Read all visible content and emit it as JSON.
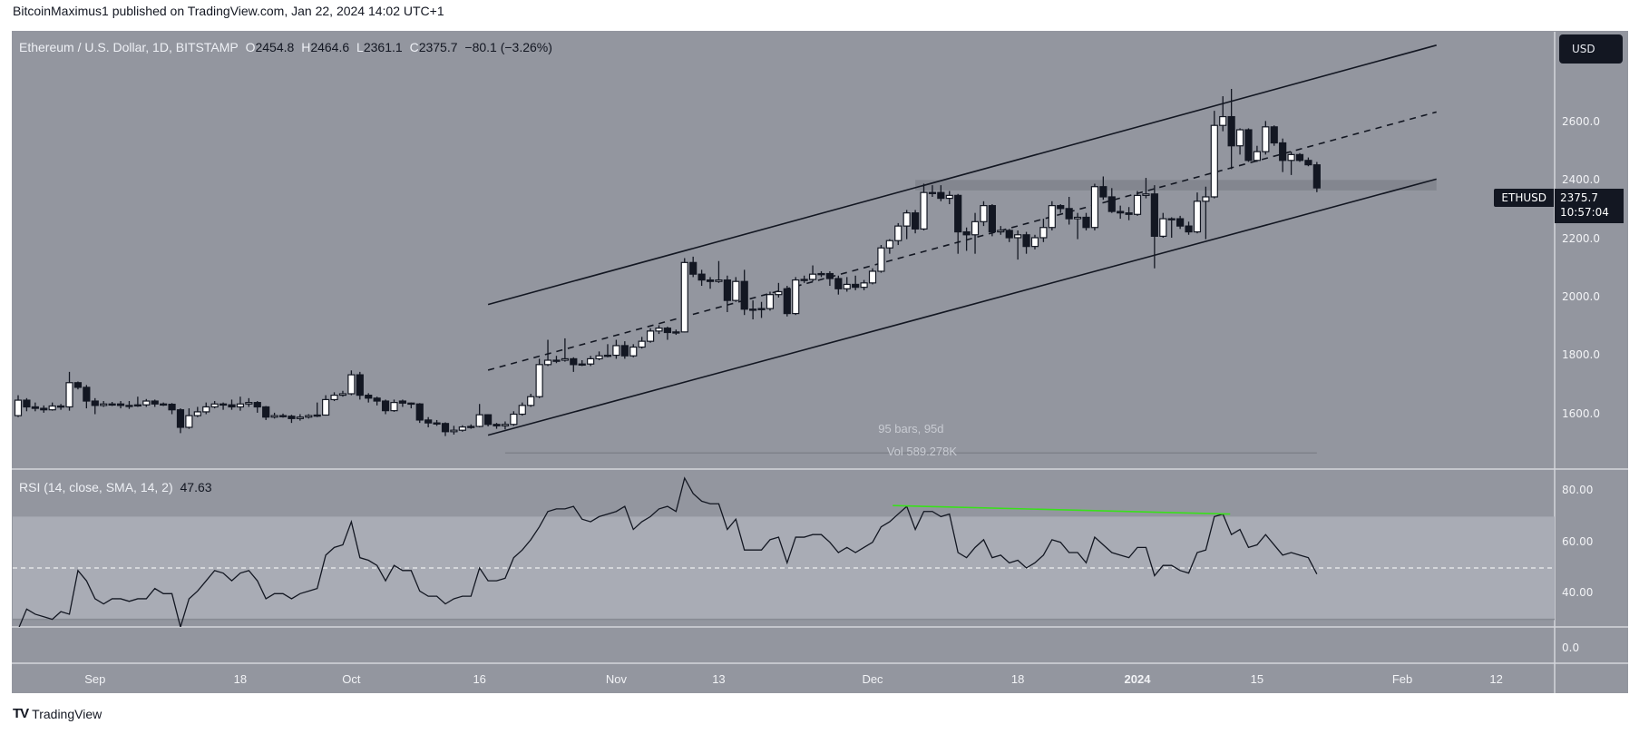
{
  "header": {
    "publish_line": "BitcoinMaximus1 published on TradingView.com, Jan 22, 2024 14:02 UTC+1"
  },
  "legend": {
    "symbol": "Ethereum / U.S. Dollar, 1D, BITSTAMP",
    "o_label": "O",
    "o_value": "2454.8",
    "h_label": "H",
    "h_value": "2464.6",
    "l_label": "L",
    "l_value": "2361.1",
    "c_label": "C",
    "c_value": "2375.7",
    "change": "−80.1 (−3.26%)"
  },
  "currency_button": "USD",
  "price_tag": {
    "symbol": "ETHUSD",
    "price": "2375.7",
    "countdown": "10:57:04"
  },
  "ruler": {
    "bars": "95 bars, 95d",
    "volume": "Vol 589.278K"
  },
  "rsi_legend": {
    "label": "RSI (14, close, SMA, 14, 2)",
    "value": "47.63"
  },
  "footer": {
    "logo_mark": "TV",
    "brand": "TradingView"
  },
  "colors": {
    "background": "#93969f",
    "up_candle": "#ffffff",
    "down_candle": "#131722",
    "rsi_band": "#a9acb5",
    "divergence_line": "#39e01b",
    "text_dark": "#131722"
  },
  "chart_data": [
    {
      "type": "candlestick",
      "title": "Ethereum / U.S. Dollar, 1D, BITSTAMP",
      "interval": "1D",
      "y_axis": {
        "ticks": [
          2600,
          2400,
          2200,
          2000,
          1800,
          1600
        ],
        "tick_labels": [
          "2600.0",
          "2400.0",
          "2200.0",
          "2000.0",
          "1800.0",
          "1600.0"
        ],
        "ylim": [
          1400,
          2950
        ]
      },
      "x_axis": {
        "ticks": [
          {
            "label": "Sep",
            "date": "2023-09-01"
          },
          {
            "label": "18",
            "date": "2023-09-18"
          },
          {
            "label": "Oct",
            "date": "2023-10-01"
          },
          {
            "label": "16",
            "date": "2023-10-16"
          },
          {
            "label": "Nov",
            "date": "2023-11-01"
          },
          {
            "label": "13",
            "date": "2023-11-13"
          },
          {
            "label": "Dec",
            "date": "2023-12-01"
          },
          {
            "label": "18",
            "date": "2023-12-18"
          },
          {
            "label": "2024",
            "date": "2024-01-01",
            "bold": true
          },
          {
            "label": "15",
            "date": "2024-01-15"
          },
          {
            "label": "Feb",
            "date": "2024-02-01"
          },
          {
            "label": "12",
            "date": "2024-02-12"
          }
        ]
      },
      "ohlc_fields": [
        "open",
        "high",
        "low",
        "close"
      ],
      "candles": [
        [
          1595,
          1665,
          1590,
          1648
        ],
        [
          1648,
          1655,
          1610,
          1625
        ],
        [
          1625,
          1640,
          1610,
          1620
        ],
        [
          1620,
          1630,
          1605,
          1615
        ],
        [
          1615,
          1640,
          1612,
          1628
        ],
        [
          1628,
          1635,
          1615,
          1625
        ],
        [
          1625,
          1745,
          1612,
          1708
        ],
        [
          1708,
          1712,
          1685,
          1692
        ],
        [
          1692,
          1700,
          1620,
          1645
        ],
        [
          1645,
          1655,
          1600,
          1630
        ],
        [
          1630,
          1645,
          1625,
          1635
        ],
        [
          1635,
          1642,
          1628,
          1635
        ],
        [
          1635,
          1645,
          1620,
          1630
        ],
        [
          1630,
          1645,
          1618,
          1630
        ],
        [
          1630,
          1660,
          1625,
          1632
        ],
        [
          1632,
          1652,
          1625,
          1645
        ],
        [
          1645,
          1650,
          1625,
          1635
        ],
        [
          1635,
          1640,
          1628,
          1634
        ],
        [
          1634,
          1638,
          1600,
          1615
        ],
        [
          1615,
          1620,
          1535,
          1555
        ],
        [
          1555,
          1620,
          1550,
          1595
        ],
        [
          1595,
          1625,
          1590,
          1608
        ],
        [
          1608,
          1640,
          1600,
          1625
        ],
        [
          1625,
          1645,
          1620,
          1635
        ],
        [
          1635,
          1640,
          1615,
          1632
        ],
        [
          1632,
          1650,
          1615,
          1625
        ],
        [
          1625,
          1660,
          1612,
          1635
        ],
        [
          1635,
          1655,
          1625,
          1640
        ],
        [
          1640,
          1645,
          1605,
          1625
        ],
        [
          1625,
          1628,
          1580,
          1590
        ],
        [
          1590,
          1605,
          1585,
          1595
        ],
        [
          1595,
          1602,
          1588,
          1593
        ],
        [
          1593,
          1598,
          1570,
          1585
        ],
        [
          1585,
          1600,
          1578,
          1590
        ],
        [
          1590,
          1600,
          1585,
          1595
        ],
        [
          1595,
          1640,
          1590,
          1597
        ],
        [
          1597,
          1665,
          1595,
          1650
        ],
        [
          1650,
          1675,
          1645,
          1665
        ],
        [
          1665,
          1680,
          1660,
          1670
        ],
        [
          1670,
          1750,
          1665,
          1735
        ],
        [
          1735,
          1745,
          1650,
          1665
        ],
        [
          1665,
          1672,
          1640,
          1655
        ],
        [
          1655,
          1660,
          1630,
          1645
        ],
        [
          1645,
          1650,
          1600,
          1612
        ],
        [
          1612,
          1650,
          1608,
          1640
        ],
        [
          1645,
          1650,
          1625,
          1638
        ],
        [
          1638,
          1640,
          1620,
          1635
        ],
        [
          1635,
          1638,
          1570,
          1580
        ],
        [
          1580,
          1590,
          1555,
          1570
        ],
        [
          1570,
          1580,
          1560,
          1568
        ],
        [
          1568,
          1572,
          1525,
          1540
        ],
        [
          1540,
          1560,
          1530,
          1545
        ],
        [
          1545,
          1562,
          1540,
          1556
        ],
        [
          1556,
          1565,
          1550,
          1558
        ],
        [
          1558,
          1635,
          1555,
          1598
        ],
        [
          1598,
          1600,
          1558,
          1565
        ],
        [
          1565,
          1570,
          1550,
          1560
        ],
        [
          1560,
          1575,
          1548,
          1565
        ],
        [
          1565,
          1610,
          1560,
          1600
        ],
        [
          1600,
          1640,
          1595,
          1630
        ],
        [
          1630,
          1670,
          1625,
          1660
        ],
        [
          1660,
          1790,
          1655,
          1770
        ],
        [
          1770,
          1855,
          1765,
          1785
        ],
        [
          1785,
          1800,
          1775,
          1785
        ],
        [
          1785,
          1860,
          1780,
          1790
        ],
        [
          1790,
          1795,
          1745,
          1770
        ],
        [
          1770,
          1785,
          1765,
          1772
        ],
        [
          1772,
          1800,
          1765,
          1790
        ],
        [
          1790,
          1815,
          1785,
          1800
        ],
        [
          1800,
          1840,
          1795,
          1802
        ],
        [
          1802,
          1855,
          1790,
          1835
        ],
        [
          1835,
          1850,
          1790,
          1800
        ],
        [
          1800,
          1840,
          1795,
          1830
        ],
        [
          1830,
          1865,
          1825,
          1850
        ],
        [
          1850,
          1895,
          1845,
          1885
        ],
        [
          1885,
          1905,
          1875,
          1895
        ],
        [
          1895,
          1900,
          1855,
          1880
        ],
        [
          1880,
          1890,
          1872,
          1882
        ],
        [
          1882,
          2135,
          1880,
          2120
        ],
        [
          2120,
          2140,
          2070,
          2080
        ],
        [
          2080,
          2095,
          2040,
          2060
        ],
        [
          2060,
          2070,
          2030,
          2055
        ],
        [
          2055,
          2125,
          2050,
          2060
        ],
        [
          2060,
          2075,
          1950,
          1990
        ],
        [
          1990,
          2070,
          1985,
          2055
        ],
        [
          2055,
          2095,
          1940,
          1960
        ],
        [
          1960,
          1990,
          1925,
          1960
        ],
        [
          1960,
          1985,
          1930,
          1962
        ],
        [
          1962,
          2020,
          1955,
          2010
        ],
        [
          2010,
          2050,
          2000,
          2020
        ],
        [
          2030,
          2040,
          1935,
          1945
        ],
        [
          1945,
          2070,
          1940,
          2060
        ],
        [
          2060,
          2075,
          2050,
          2062
        ],
        [
          2062,
          2110,
          2055,
          2080
        ],
        [
          2080,
          2090,
          2070,
          2082
        ],
        [
          2082,
          2090,
          2040,
          2065
        ],
        [
          2065,
          2075,
          2010,
          2030
        ],
        [
          2030,
          2070,
          2020,
          2045
        ],
        [
          2045,
          2075,
          2025,
          2035
        ],
        [
          2035,
          2060,
          2025,
          2050
        ],
        [
          2050,
          2100,
          2045,
          2090
        ],
        [
          2090,
          2180,
          2085,
          2170
        ],
        [
          2170,
          2200,
          2150,
          2195
        ],
        [
          2195,
          2255,
          2180,
          2245
        ],
        [
          2245,
          2300,
          2200,
          2290
        ],
        [
          2290,
          2300,
          2220,
          2235
        ],
        [
          2235,
          2390,
          2230,
          2360
        ],
        [
          2360,
          2385,
          2345,
          2360
        ],
        [
          2360,
          2385,
          2330,
          2340
        ],
        [
          2340,
          2365,
          2320,
          2350
        ],
        [
          2350,
          2355,
          2150,
          2225
        ],
        [
          2225,
          2240,
          2160,
          2215
        ],
        [
          2215,
          2290,
          2150,
          2260
        ],
        [
          2260,
          2330,
          2245,
          2315
        ],
        [
          2315,
          2320,
          2210,
          2225
        ],
        [
          2225,
          2245,
          2215,
          2230
        ],
        [
          2230,
          2235,
          2190,
          2205
        ],
        [
          2205,
          2230,
          2130,
          2215
        ],
        [
          2215,
          2225,
          2150,
          2175
        ],
        [
          2175,
          2215,
          2165,
          2205
        ],
        [
          2205,
          2270,
          2190,
          2240
        ],
        [
          2240,
          2330,
          2230,
          2315
        ],
        [
          2315,
          2320,
          2290,
          2305
        ],
        [
          2305,
          2345,
          2250,
          2270
        ],
        [
          2270,
          2290,
          2200,
          2275
        ],
        [
          2275,
          2290,
          2230,
          2240
        ],
        [
          2240,
          2390,
          2230,
          2380
        ],
        [
          2380,
          2415,
          2335,
          2345
        ],
        [
          2345,
          2375,
          2290,
          2295
        ],
        [
          2295,
          2315,
          2270,
          2290
        ],
        [
          2290,
          2310,
          2265,
          2285
        ],
        [
          2285,
          2365,
          2280,
          2350
        ],
        [
          2350,
          2410,
          2340,
          2355
        ],
        [
          2355,
          2385,
          2100,
          2210
        ],
        [
          2210,
          2290,
          2205,
          2270
        ],
        [
          2268,
          2275,
          2205,
          2270
        ],
        [
          2270,
          2280,
          2235,
          2245
        ],
        [
          2245,
          2260,
          2215,
          2225
        ],
        [
          2225,
          2360,
          2220,
          2330
        ],
        [
          2330,
          2380,
          2200,
          2345
        ],
        [
          2345,
          2640,
          2340,
          2590
        ],
        [
          2590,
          2690,
          2570,
          2620
        ],
        [
          2620,
          2715,
          2440,
          2520
        ],
        [
          2520,
          2580,
          2490,
          2575
        ],
        [
          2575,
          2580,
          2465,
          2470
        ],
        [
          2470,
          2520,
          2465,
          2500
        ],
        [
          2500,
          2605,
          2490,
          2585
        ],
        [
          2585,
          2590,
          2520,
          2530
        ],
        [
          2530,
          2545,
          2430,
          2470
        ],
        [
          2470,
          2500,
          2420,
          2490
        ],
        [
          2490,
          2495,
          2465,
          2470
        ],
        [
          2470,
          2480,
          2450,
          2455
        ],
        [
          2454.8,
          2464.6,
          2361.1,
          2375.7
        ]
      ],
      "last_price": 2375.7,
      "drawings": {
        "channel_upper": {
          "style": "solid",
          "from": {
            "date": "2023-10-17",
            "price": 1976
          },
          "to": {
            "date": "2024-02-05",
            "price": 2865
          }
        },
        "channel_middle": {
          "style": "dashed",
          "from": {
            "date": "2023-10-17",
            "price": 1751
          },
          "to": {
            "date": "2024-02-05",
            "price": 2636
          }
        },
        "channel_lower": {
          "style": "solid",
          "from": {
            "date": "2023-10-17",
            "price": 1528
          },
          "to": {
            "date": "2024-02-05",
            "price": 2406
          }
        },
        "horizontal_zone": {
          "from_date": "2023-12-06",
          "to_date": "2024-02-05",
          "price_low": 2367,
          "price_high": 2403
        },
        "date_range_ruler": {
          "from_date": "2023-10-19",
          "to_date": "2024-01-22",
          "price": 1467,
          "bars": 95,
          "days": 95,
          "volume": "589.278K"
        }
      }
    },
    {
      "type": "line",
      "title": "RSI (14, close, SMA, 14, 2)",
      "y_axis": {
        "ticks": [
          80,
          60,
          40
        ],
        "tick_labels": [
          "80.00",
          "60.00",
          "40.00"
        ]
      },
      "bands": {
        "upper": 70,
        "middle": 50,
        "lower": 30
      },
      "values": [
        26,
        34,
        32,
        31,
        30,
        33,
        32,
        49,
        45,
        38,
        36,
        38,
        38,
        37,
        38,
        38,
        42,
        40,
        40,
        27,
        38,
        41,
        45,
        49,
        48,
        45,
        48,
        49,
        45,
        38,
        40,
        40,
        38,
        40,
        41,
        42,
        55,
        58,
        59,
        68,
        54,
        53,
        51,
        45,
        51,
        49,
        49,
        41,
        39,
        39,
        36,
        38,
        39,
        39,
        50,
        45,
        45,
        46,
        54,
        57,
        61,
        66,
        72,
        73,
        73,
        74,
        69,
        68,
        70,
        71,
        72,
        74,
        65,
        68,
        70,
        73,
        74,
        72,
        85,
        79,
        76,
        75,
        75,
        65,
        69,
        57,
        57,
        57,
        61,
        62,
        52,
        62,
        62,
        63,
        63,
        60,
        56,
        58,
        56,
        58,
        60,
        66,
        68,
        71,
        74,
        65,
        72,
        72,
        70,
        71,
        56,
        54,
        58,
        61,
        54,
        55,
        52,
        53,
        50,
        52,
        55,
        61,
        60,
        56,
        56,
        52,
        62,
        59,
        56,
        55,
        54,
        58,
        58,
        47,
        51,
        51,
        49,
        48,
        56,
        57,
        70,
        71,
        63,
        65,
        58,
        59,
        63,
        59,
        55,
        56,
        55,
        54,
        47.63
      ],
      "last_value": 47.63,
      "divergence_line": {
        "from": {
          "date": "2023-12-04",
          "value": 74.3
        },
        "to": {
          "date": "2024-01-11",
          "value": 71
        }
      }
    },
    {
      "type": "empty_pane",
      "y_axis": {
        "tick_labels": [
          "0.0"
        ]
      }
    }
  ]
}
